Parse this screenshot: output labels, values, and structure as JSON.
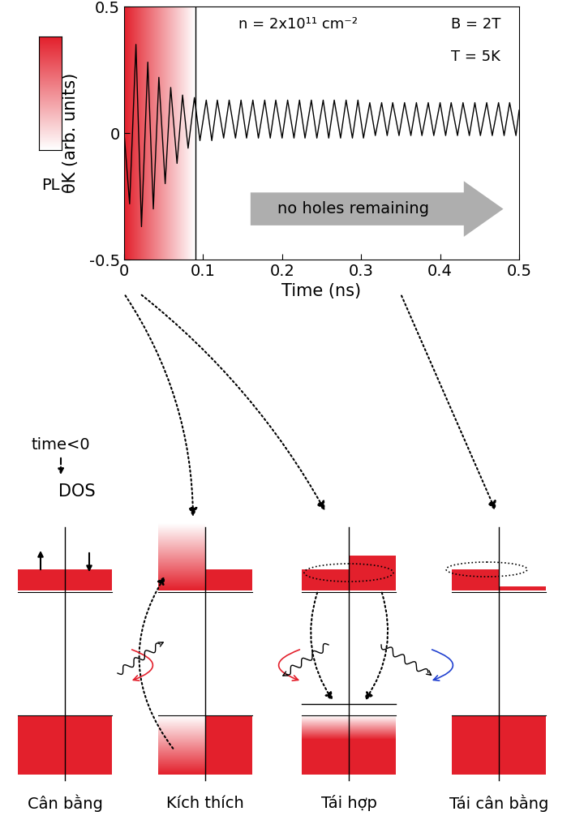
{
  "chart_data": {
    "type": "line",
    "x": [
      0,
      0.007,
      0.015,
      0.022,
      0.03,
      0.037,
      0.044,
      0.052,
      0.059,
      0.067,
      0.074,
      0.081,
      0.089,
      0.096,
      0.104,
      0.111,
      0.118,
      0.126,
      0.133,
      0.141,
      0.148,
      0.155,
      0.163,
      0.17,
      0.178,
      0.185,
      0.192,
      0.2,
      0.207,
      0.215,
      0.222,
      0.229,
      0.237,
      0.244,
      0.252,
      0.259,
      0.266,
      0.274,
      0.281,
      0.289,
      0.296,
      0.303,
      0.311,
      0.318,
      0.326,
      0.333,
      0.34,
      0.348,
      0.355,
      0.363,
      0.37,
      0.377,
      0.385,
      0.392,
      0.4,
      0.407,
      0.414,
      0.422,
      0.429,
      0.437,
      0.444,
      0.451,
      0.459,
      0.466,
      0.474,
      0.481,
      0.488,
      0.496,
      0.5
    ],
    "values": [
      0.0,
      -0.28,
      0.35,
      -0.37,
      0.28,
      -0.3,
      0.22,
      -0.2,
      0.18,
      -0.12,
      0.15,
      -0.06,
      0.14,
      -0.03,
      0.13,
      -0.03,
      0.13,
      -0.02,
      0.13,
      -0.02,
      0.13,
      -0.02,
      0.13,
      -0.02,
      0.13,
      -0.02,
      0.13,
      -0.02,
      0.13,
      -0.02,
      0.13,
      -0.02,
      0.13,
      -0.02,
      0.13,
      -0.02,
      0.13,
      -0.02,
      0.13,
      -0.02,
      0.13,
      -0.02,
      0.12,
      -0.01,
      0.12,
      -0.01,
      0.12,
      -0.01,
      0.12,
      -0.01,
      0.12,
      -0.01,
      0.12,
      -0.01,
      0.12,
      -0.01,
      0.12,
      -0.01,
      0.12,
      -0.01,
      0.12,
      -0.01,
      0.12,
      -0.01,
      0.12,
      -0.01,
      0.12,
      -0.01,
      0.09
    ],
    "color": "#000000",
    "xlim": [
      0,
      0.5
    ],
    "ylim": [
      -0.5,
      0.5
    ],
    "xticks": [
      0,
      0.1,
      0.2,
      0.3,
      0.4,
      0.5
    ],
    "yticks": [
      -0.5,
      0,
      0.5
    ],
    "x_label": "Time (ns)",
    "y_label": "θK (arb. units)",
    "annotations": [
      "n = 2x10¹¹ cm⁻²",
      "B = 2T",
      "T = 5K"
    ],
    "arrow_text": "no holes remaining",
    "pl_region": [
      0,
      0.09
    ],
    "colorbar_label": "PL"
  },
  "diagram": {
    "start_label": "time<0",
    "axis_label": "DOS",
    "pointer_times": [
      0,
      0.02,
      0.35
    ],
    "panels": [
      {
        "label": "Cân bằng"
      },
      {
        "label": "Kích thích"
      },
      {
        "label": "Tái hợp"
      },
      {
        "label": "Tái cân bằng"
      }
    ]
  }
}
